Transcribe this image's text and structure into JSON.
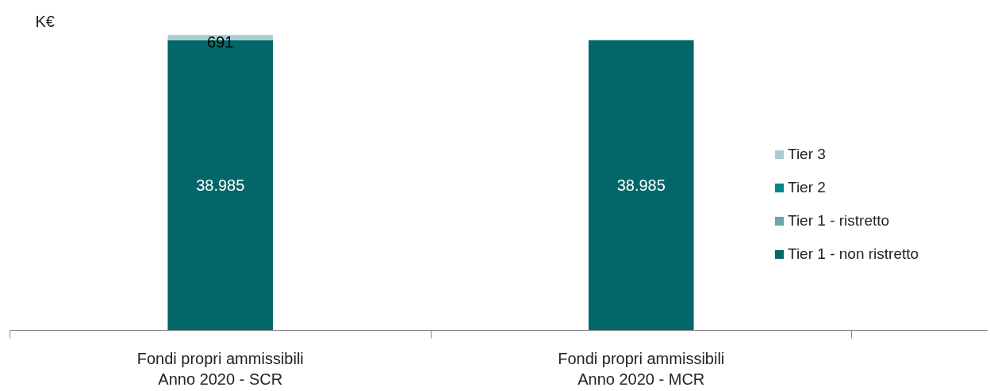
{
  "chart_data": {
    "type": "bar",
    "stacked": true,
    "ylabel": "K€",
    "categories": [
      "Fondi propri ammissibili\nAnno 2020 - SCR",
      "Fondi propri ammissibili\nAnno 2020 - MCR"
    ],
    "series": [
      {
        "name": "Tier 1 - non ristretto",
        "color": "#03676a",
        "values": [
          38985,
          38985
        ],
        "value_labels": [
          "38.985",
          "38.985"
        ]
      },
      {
        "name": "Tier 1 - ristretto",
        "color": "#6aa6a9",
        "values": [
          null,
          null
        ]
      },
      {
        "name": "Tier 2",
        "color": "#00878a",
        "values": [
          null,
          null
        ]
      },
      {
        "name": "Tier 3",
        "color": "#a9cdd0",
        "values": [
          691,
          null
        ],
        "value_labels": [
          "691",
          null
        ]
      }
    ],
    "legend": "right",
    "grid": false,
    "tick_labels": "x"
  }
}
